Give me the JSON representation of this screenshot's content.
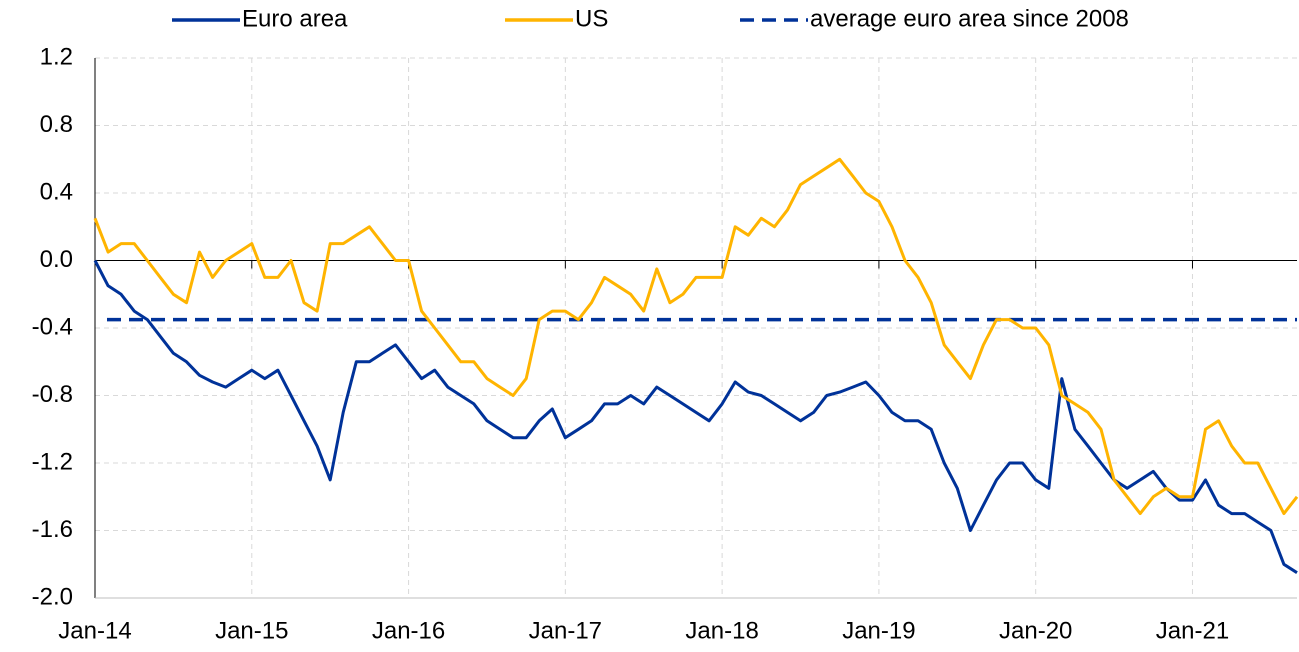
{
  "chart_data": {
    "type": "line",
    "x": [
      "2014-01",
      "2014-02",
      "2014-03",
      "2014-04",
      "2014-05",
      "2014-06",
      "2014-07",
      "2014-08",
      "2014-09",
      "2014-10",
      "2014-11",
      "2014-12",
      "2015-01",
      "2015-02",
      "2015-03",
      "2015-04",
      "2015-05",
      "2015-06",
      "2015-07",
      "2015-08",
      "2015-09",
      "2015-10",
      "2015-11",
      "2015-12",
      "2016-01",
      "2016-02",
      "2016-03",
      "2016-04",
      "2016-05",
      "2016-06",
      "2016-07",
      "2016-08",
      "2016-09",
      "2016-10",
      "2016-11",
      "2016-12",
      "2017-01",
      "2017-02",
      "2017-03",
      "2017-04",
      "2017-05",
      "2017-06",
      "2017-07",
      "2017-08",
      "2017-09",
      "2017-10",
      "2017-11",
      "2017-12",
      "2018-01",
      "2018-02",
      "2018-03",
      "2018-04",
      "2018-05",
      "2018-06",
      "2018-07",
      "2018-08",
      "2018-09",
      "2018-10",
      "2018-11",
      "2018-12",
      "2019-01",
      "2019-02",
      "2019-03",
      "2019-04",
      "2019-05",
      "2019-06",
      "2019-07",
      "2019-08",
      "2019-09",
      "2019-10",
      "2019-11",
      "2019-12",
      "2020-01",
      "2020-02",
      "2020-03",
      "2020-04",
      "2020-05",
      "2020-06",
      "2020-07",
      "2020-08",
      "2020-09",
      "2020-10",
      "2020-11",
      "2020-12",
      "2021-01",
      "2021-02",
      "2021-03",
      "2021-04",
      "2021-05",
      "2021-06",
      "2021-07",
      "2021-08",
      "2021-09"
    ],
    "series": [
      {
        "name": "Euro area",
        "color": "#003299",
        "values": [
          0.0,
          -0.15,
          -0.2,
          -0.3,
          -0.35,
          -0.45,
          -0.55,
          -0.6,
          -0.68,
          -0.72,
          -0.75,
          -0.7,
          -0.65,
          -0.7,
          -0.65,
          -0.8,
          -0.95,
          -1.1,
          -1.3,
          -0.9,
          -0.6,
          -0.6,
          -0.55,
          -0.5,
          -0.6,
          -0.7,
          -0.65,
          -0.75,
          -0.8,
          -0.85,
          -0.95,
          -1.0,
          -1.05,
          -1.05,
          -0.95,
          -0.88,
          -1.05,
          -1.0,
          -0.95,
          -0.85,
          -0.85,
          -0.8,
          -0.85,
          -0.75,
          -0.8,
          -0.85,
          -0.9,
          -0.95,
          -0.85,
          -0.72,
          -0.78,
          -0.8,
          -0.85,
          -0.9,
          -0.95,
          -0.9,
          -0.8,
          -0.78,
          -0.75,
          -0.72,
          -0.8,
          -0.9,
          -0.95,
          -0.95,
          -1.0,
          -1.2,
          -1.35,
          -1.6,
          -1.45,
          -1.3,
          -1.2,
          -1.2,
          -1.3,
          -1.35,
          -0.7,
          -1.0,
          -1.1,
          -1.2,
          -1.3,
          -1.35,
          -1.3,
          -1.25,
          -1.35,
          -1.42,
          -1.42,
          -1.3,
          -1.45,
          -1.5,
          -1.5,
          -1.55,
          -1.6,
          -1.8,
          -1.85
        ]
      },
      {
        "name": "US",
        "color": "#ffb400",
        "values": [
          0.25,
          0.05,
          0.1,
          0.1,
          0.0,
          -0.1,
          -0.2,
          -0.25,
          0.05,
          -0.1,
          0.0,
          0.05,
          0.1,
          -0.1,
          -0.1,
          0.0,
          -0.25,
          -0.3,
          0.1,
          0.1,
          0.15,
          0.2,
          0.1,
          0.0,
          0.0,
          -0.3,
          -0.4,
          -0.5,
          -0.6,
          -0.6,
          -0.7,
          -0.75,
          -0.8,
          -0.7,
          -0.35,
          -0.3,
          -0.3,
          -0.35,
          -0.25,
          -0.1,
          -0.15,
          -0.2,
          -0.3,
          -0.05,
          -0.25,
          -0.2,
          -0.1,
          -0.1,
          -0.1,
          0.2,
          0.15,
          0.25,
          0.2,
          0.3,
          0.45,
          0.5,
          0.55,
          0.6,
          0.5,
          0.4,
          0.35,
          0.2,
          0.0,
          -0.1,
          -0.25,
          -0.5,
          -0.6,
          -0.7,
          -0.5,
          -0.35,
          -0.35,
          -0.4,
          -0.4,
          -0.5,
          -0.8,
          -0.85,
          -0.9,
          -1.0,
          -1.3,
          -1.4,
          -1.5,
          -1.4,
          -1.35,
          -1.4,
          -1.4,
          -1.0,
          -0.95,
          -1.1,
          -1.2,
          -1.2,
          -1.35,
          -1.5,
          -1.4
        ]
      }
    ],
    "reference_lines": [
      {
        "name": "average euro area since 2008",
        "value": -0.35,
        "color": "#003299",
        "dash": true
      }
    ],
    "xlim": [
      "2014-01",
      "2021-09"
    ],
    "xticks": [
      {
        "value": "2014-01",
        "label": "Jan-14"
      },
      {
        "value": "2015-01",
        "label": "Jan-15"
      },
      {
        "value": "2016-01",
        "label": "Jan-16"
      },
      {
        "value": "2017-01",
        "label": "Jan-17"
      },
      {
        "value": "2018-01",
        "label": "Jan-18"
      },
      {
        "value": "2019-01",
        "label": "Jan-19"
      },
      {
        "value": "2020-01",
        "label": "Jan-20"
      },
      {
        "value": "2021-01",
        "label": "Jan-21"
      }
    ],
    "ylim": [
      -2.0,
      1.2
    ],
    "yticks": [
      {
        "value": 1.2,
        "label": "1.2"
      },
      {
        "value": 0.8,
        "label": "0.8"
      },
      {
        "value": 0.4,
        "label": "0.4"
      },
      {
        "value": 0,
        "label": "0.0"
      },
      {
        "value": -0.4,
        "label": "-0.4"
      },
      {
        "value": -0.8,
        "label": "-0.8"
      },
      {
        "value": -1.2,
        "label": "-1.2"
      },
      {
        "value": -1.6,
        "label": "-1.6"
      },
      {
        "value": -2.0,
        "label": "-2.0"
      }
    ],
    "grid": true,
    "legend": "top"
  }
}
